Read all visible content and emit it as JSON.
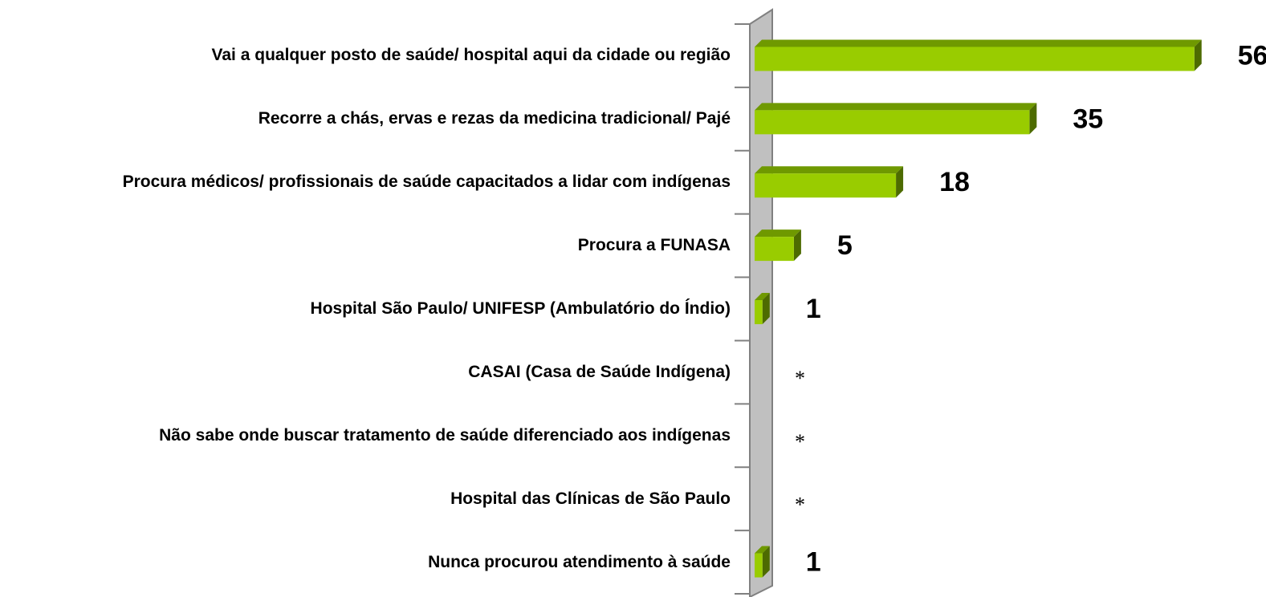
{
  "chart_data": {
    "type": "bar",
    "orientation": "horizontal",
    "categories": [
      "Vai a qualquer posto de saúde/ hospital aqui da cidade ou região",
      "Recorre a chás, ervas e rezas da medicina tradicional/ Pajé",
      "Procura médicos/ profissionais de saúde capacitados a lidar com indígenas",
      "Procura a FUNASA",
      "Hospital São Paulo/ UNIFESP (Ambulatório do Índio)",
      "CASAI (Casa de Saúde Indígena)",
      "Não sabe onde buscar tratamento de saúde diferenciado aos indígenas",
      "Hospital das Clínicas de São Paulo",
      "Nunca procurou atendimento à saúde"
    ],
    "values": [
      56,
      35,
      18,
      5,
      1,
      null,
      null,
      null,
      1
    ],
    "value_labels": [
      "56",
      "35",
      "18",
      "5",
      "1",
      "*",
      "*",
      "*",
      "1"
    ],
    "color": "#99cc00",
    "xlim": [
      0,
      64
    ]
  }
}
